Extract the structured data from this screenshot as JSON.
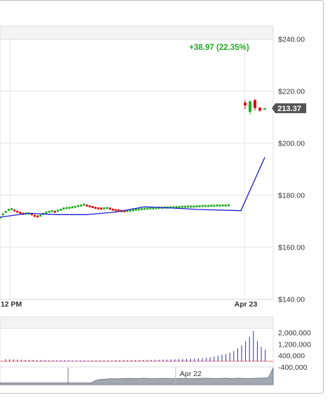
{
  "change_label": "+38.97 (22.35%)",
  "last_price_tag": "213.37",
  "colors": {
    "up": "#22aa22",
    "down": "#dd0000",
    "sma_line": "#1a1acc",
    "price_line": "#2a2acc",
    "tag_bg": "#555555",
    "grid": "#e6e6e6",
    "navigator_fill": "#7a8290"
  },
  "chart_data": [
    {
      "type": "line",
      "title": "",
      "x_labels": [
        "12 PM",
        "Apr 23"
      ],
      "y_ticks": [
        "$240.00",
        "$220.00",
        "$200.00",
        "$180.00",
        "$160.00",
        "$140.00"
      ],
      "ylim": [
        140,
        240
      ],
      "grid": true,
      "annotation": "+38.97 (22.35%)",
      "last_value": 213.37,
      "series": [
        {
          "kind": "candles",
          "x": [
            0,
            0.5,
            1,
            1.5,
            2,
            2.5,
            3,
            3.5,
            4,
            4.5,
            5,
            5.5,
            6,
            6.5,
            7,
            7.5,
            8,
            8.5,
            9,
            9.5,
            10,
            10.5,
            11,
            11.5,
            12,
            12.5,
            13,
            13.5,
            14,
            14.5,
            15,
            15.5,
            16,
            16.5,
            17,
            17.5,
            18,
            18.5,
            19,
            19.5,
            20,
            20.5,
            21,
            21.5,
            22,
            22.5,
            23,
            23.5,
            24,
            24.5,
            25,
            25.5,
            26,
            26.5,
            27,
            27.5,
            28,
            28.5,
            29,
            29.5,
            30,
            30.5,
            31,
            31.5,
            32,
            32.5,
            33,
            33.5,
            34,
            34.5,
            35,
            35.5,
            36,
            36.5,
            37,
            37.5,
            38,
            38.5,
            39,
            39.5,
            40,
            40.5,
            41,
            41.5,
            42,
            42.5,
            43,
            43.5,
            44,
            44.5,
            45,
            45.5,
            46,
            46.5,
            47,
            47.5,
            48,
            48.5,
            49,
            49.5,
            50,
            50.5,
            51,
            51.5,
            52,
            52.5,
            53,
            53.5,
            54,
            54.5,
            55,
            55.5,
            56,
            56.5,
            57,
            57.5,
            58,
            58.5,
            59,
            59.5,
            60,
            60.5,
            61,
            61.5,
            62,
            62.5,
            63,
            63.5,
            64,
            64.5,
            65,
            65.5,
            66,
            66.5,
            67,
            67.5,
            68,
            68.5,
            69,
            69.5,
            70,
            70.5,
            71,
            71.5,
            72,
            72.5,
            73,
            73.5,
            74,
            74.5,
            75,
            75.5,
            76,
            76.5,
            77,
            77.5,
            78,
            78.5,
            79
          ],
          "close": [
            171.3,
            172.6,
            172.6,
            173.1,
            173.5,
            173.9,
            174.3,
            174.6,
            174.6,
            174.3,
            174.1,
            173.8,
            173.6,
            173.4,
            173.2,
            173.0,
            172.8,
            172.8,
            172.9,
            173.0,
            172.9,
            172.8,
            172.6,
            172.3,
            172.0,
            171.9,
            171.8,
            171.9,
            172.1,
            172.4,
            172.8,
            173.1,
            173.3,
            173.5,
            173.6,
            173.8,
            173.8,
            173.7,
            173.6,
            173.8,
            174.0,
            174.2,
            174.4,
            174.6,
            174.8,
            174.9,
            175.0,
            175.1,
            175.1,
            175.2,
            175.3,
            175.4,
            175.5,
            175.6,
            175.8,
            175.9,
            176.0,
            176.1,
            176.3,
            176.2,
            176.0,
            175.9,
            175.7,
            175.5,
            175.4,
            175.3,
            175.1,
            175.0,
            174.9,
            174.9,
            174.8,
            174.8,
            174.9,
            175.0,
            175.0,
            174.9,
            174.8,
            174.6,
            174.4,
            174.3,
            174.2,
            174.1,
            174.1,
            174.0,
            173.9,
            173.8,
            173.8,
            173.9,
            173.9,
            174.0,
            174.0,
            174.1,
            174.2,
            174.3,
            174.4,
            174.4,
            174.5,
            174.6,
            174.6,
            174.7,
            174.7,
            174.8,
            174.8,
            174.8,
            174.9,
            174.9,
            174.9,
            175.0,
            175.0,
            175.0,
            175.1,
            175.1,
            175.1,
            175.1,
            175.2,
            175.2,
            175.2,
            175.2,
            175.3,
            175.3,
            175.3,
            175.3,
            175.4,
            175.4,
            175.4,
            175.4,
            175.5,
            175.5,
            175.5,
            175.5,
            175.6,
            175.6,
            175.6,
            175.6,
            175.6,
            175.7,
            175.7,
            175.7,
            175.7,
            175.7,
            175.8,
            175.8,
            175.8,
            175.8,
            175.8,
            175.9,
            175.9,
            175.9,
            175.9,
            175.9,
            176.0,
            176.0,
            176.0,
            176.0,
            176.0,
            176.0,
            176.0,
            176.1,
            176.1
          ]
        },
        {
          "kind": "line",
          "name": "",
          "points": [
            [
              0,
              171.5
            ],
            [
              10,
              173.0
            ],
            [
              20,
              172.5
            ],
            [
              30,
              172.5
            ],
            [
              40,
              173.5
            ],
            [
              50,
              175.5
            ],
            [
              60,
              175.0
            ],
            [
              68,
              174.5
            ],
            [
              70,
              174.0
            ],
            [
              72,
              194.5
            ]
          ]
        }
      ],
      "candles_after_gap": [
        {
          "x": 73.0,
          "open": 214.5,
          "close": 215.5,
          "high": 216.5,
          "low": 213.0,
          "dir": "down"
        },
        {
          "x": 74.5,
          "open": 216.0,
          "close": 212.0,
          "high": 216.5,
          "low": 211.0,
          "dir": "up"
        },
        {
          "x": 76.0,
          "open": 216.5,
          "close": 213.5,
          "high": 217.0,
          "low": 212.5,
          "dir": "down"
        },
        {
          "x": 77.5,
          "open": 213.5,
          "close": 212.5,
          "high": 214.0,
          "low": 212.0,
          "dir": "down"
        },
        {
          "x": 79.0,
          "open": 213.3,
          "close": 213.4,
          "high": 213.4,
          "low": 213.3,
          "dir": "up"
        }
      ]
    },
    {
      "type": "bar",
      "title": "",
      "y_ticks": [
        "2,000,000",
        "1,200,000",
        "400,000",
        "-400,000"
      ],
      "ylim": [
        -400000,
        2300000
      ],
      "values": [
        150000,
        140000,
        130000,
        120000,
        110000,
        100000,
        90000,
        90000,
        80000,
        80000,
        80000,
        70000,
        70000,
        70000,
        70000,
        70000,
        70000,
        60000,
        60000,
        60000,
        60000,
        60000,
        60000,
        60000,
        60000,
        60000,
        70000,
        70000,
        70000,
        70000,
        80000,
        80000,
        80000,
        80000,
        90000,
        90000,
        100000,
        100000,
        110000,
        110000,
        120000,
        120000,
        130000,
        140000,
        150000,
        160000,
        170000,
        180000,
        190000,
        200000,
        220000,
        240000,
        280000,
        320000,
        380000,
        450000,
        500000,
        600000,
        720000,
        900000,
        1100000,
        1400000,
        1700000,
        2100000,
        1400000,
        1000000,
        800000
      ]
    },
    {
      "type": "area",
      "title": "",
      "x_labels": [
        "Apr 22"
      ],
      "values": [
        0.1,
        0.1,
        0.1,
        0.1,
        0.1,
        0.1,
        0.1,
        0.1,
        0.1,
        0.1,
        0.1,
        0.1,
        0.1,
        0.1,
        0.1,
        0.1,
        0.1,
        0.1,
        0.1,
        0.1,
        0.25,
        0.3,
        0.32,
        0.35,
        0.34,
        0.35,
        0.36,
        0.37,
        0.36,
        0.36,
        0.38,
        0.36,
        0.35,
        0.36,
        0.37,
        0.36,
        0.35,
        0.36,
        0.37,
        0.36,
        0.35,
        0.36,
        0.37,
        0.38,
        0.37,
        0.36,
        0.37,
        0.38,
        0.36,
        0.37,
        0.38,
        0.37,
        0.36,
        0.37,
        0.38,
        0.39,
        0.4,
        1.0
      ]
    }
  ]
}
